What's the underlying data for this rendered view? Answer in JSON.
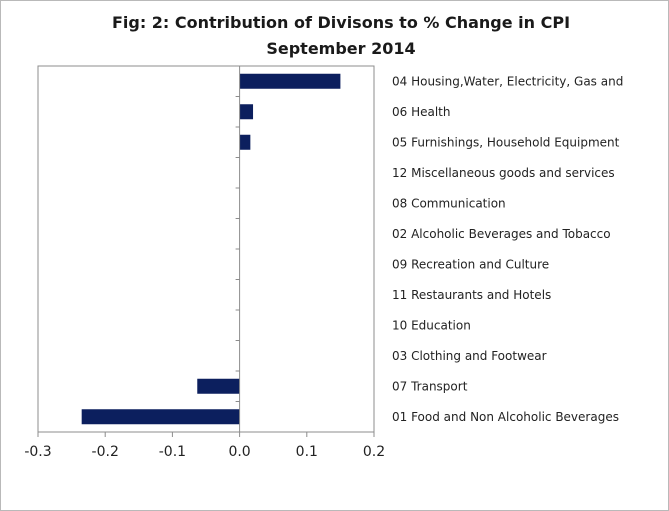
{
  "chart_data": {
    "type": "bar",
    "orientation": "horizontal",
    "title": "Fig: 2: Contribution of Divisons to % Change in CPI",
    "subtitle": "September 2014",
    "xlabel": "",
    "ylabel": "",
    "xlim": [
      -0.3,
      0.2
    ],
    "x_ticks": [
      "-0.3",
      "-0.2",
      "-0.1",
      "0.0",
      "0.1",
      "0.2"
    ],
    "x_tick_values": [
      -0.3,
      -0.2,
      -0.1,
      0.0,
      0.1,
      0.2
    ],
    "grid": false,
    "legend": "none",
    "bar_color": "#0c1f5e",
    "categories": [
      "04 Housing,Water, Electricity, Gas and",
      "06 Health",
      "05 Furnishings, Household Equipment",
      "12 Miscellaneous goods and services",
      "08 Communication",
      "02 Alcoholic Beverages and Tobacco",
      "09 Recreation and Culture",
      "11 Restaurants and Hotels",
      "10 Education",
      "03 Clothing and Footwear",
      "07 Transport",
      "01 Food and Non Alcoholic Beverages"
    ],
    "values": [
      0.15,
      0.02,
      0.016,
      0.0,
      0.0,
      0.0,
      0.0,
      0.0,
      0.0,
      0.0,
      -0.063,
      -0.235
    ]
  }
}
